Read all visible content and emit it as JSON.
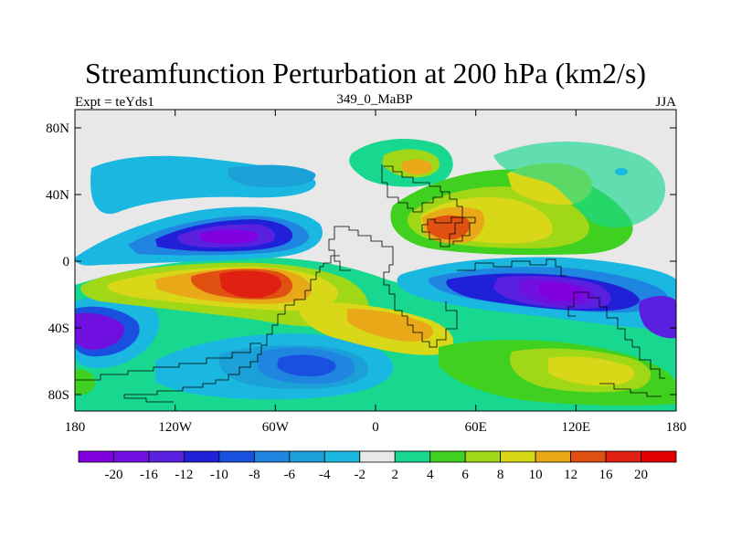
{
  "title": "Streamfunction Perturbation at 200 hPa (km2/s)",
  "labels": {
    "left": "Expt = teYds1",
    "center": "349_0_MaBP",
    "right": "JJA"
  },
  "map": {
    "lon_ticks": [
      "180",
      "120W",
      "60W",
      "0",
      "60E",
      "120E",
      "180"
    ],
    "lat_ticks": [
      "80N",
      "40N",
      "0",
      "40S",
      "80S"
    ]
  },
  "colorbar": {
    "colors": [
      "#8000e0",
      "#7010e0",
      "#5a20e0",
      "#2020d8",
      "#1a50e0",
      "#1f85e0",
      "#1ca0d8",
      "#1ab8e0",
      "#e8e8e8",
      "#18d890",
      "#40d020",
      "#a0d818",
      "#d8d818",
      "#e8a818",
      "#e05010",
      "#e02010",
      "#e00000"
    ],
    "labels": [
      "-20",
      "-16",
      "-12",
      "-10",
      "-8",
      "-6",
      "-4",
      "-2",
      "2",
      "4",
      "6",
      "8",
      "10",
      "12",
      "16",
      "20"
    ]
  }
}
